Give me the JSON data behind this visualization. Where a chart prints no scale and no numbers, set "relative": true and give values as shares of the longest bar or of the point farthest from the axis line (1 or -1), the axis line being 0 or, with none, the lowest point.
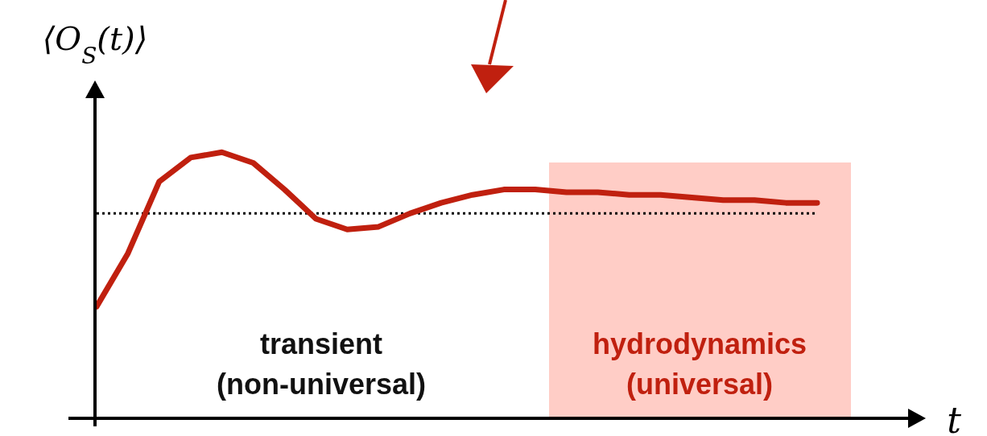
{
  "chart_data": {
    "type": "line",
    "relative": true,
    "ylabel": "⟨O$_{S}$(t)⟩",
    "xlabel": "t",
    "marker": "none",
    "line_style": "solid",
    "categories": [
      null,
      null,
      null,
      null,
      null,
      null,
      null,
      null,
      null,
      null,
      null,
      null,
      null,
      null,
      null,
      null,
      null,
      null,
      null,
      null,
      null,
      null,
      null,
      null
    ],
    "series": [
      {
        "color": "#c0200f",
        "values": [
          0.42,
          0.62,
          0.89,
          0.98,
          1.0,
          0.96,
          0.86,
          0.75,
          0.71,
          0.72,
          0.77,
          0.81,
          0.84,
          0.86,
          0.86,
          0.85,
          0.85,
          0.84,
          0.84,
          0.83,
          0.82,
          0.82,
          0.81,
          0.81
        ]
      }
    ],
    "ref_lines": [
      {
        "axis": "y",
        "value": 0.77,
        "color": "#000000",
        "line_style": "dotted"
      }
    ],
    "annotations": [
      "transient\n(non-universal)",
      "hydrodynamics\n(universal)"
    ]
  }
}
